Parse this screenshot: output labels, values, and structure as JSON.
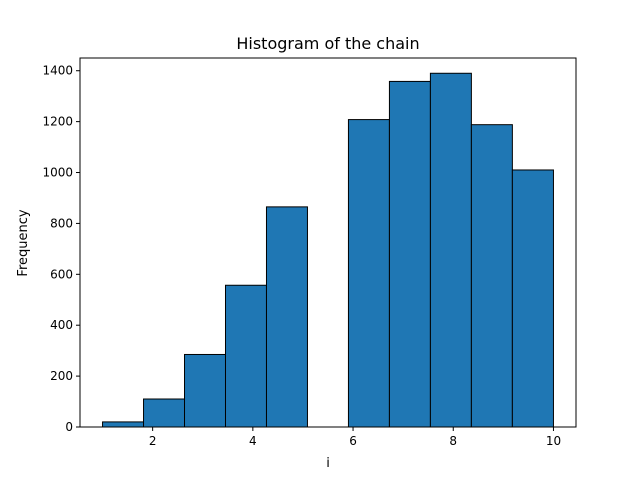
{
  "chart_data": {
    "type": "bar",
    "title": "Histogram of the chain",
    "xlabel": "i",
    "ylabel": "Frequency",
    "xlim": [
      0.55,
      10.45
    ],
    "ylim": [
      0,
      1450
    ],
    "xticks": [
      2,
      4,
      6,
      8,
      10
    ],
    "yticks": [
      0,
      200,
      400,
      600,
      800,
      1000,
      1200,
      1400
    ],
    "bin_edges": [
      1.0,
      1.818,
      2.636,
      3.454,
      4.272,
      5.09,
      5.908,
      6.726,
      7.544,
      8.362,
      9.18,
      10.0
    ],
    "values": [
      20,
      110,
      285,
      557,
      865,
      0,
      1208,
      1358,
      1390,
      1188,
      1010
    ],
    "bar_color": "#1f77b4",
    "edge_color": "#000000",
    "grid": false,
    "legend": false
  }
}
